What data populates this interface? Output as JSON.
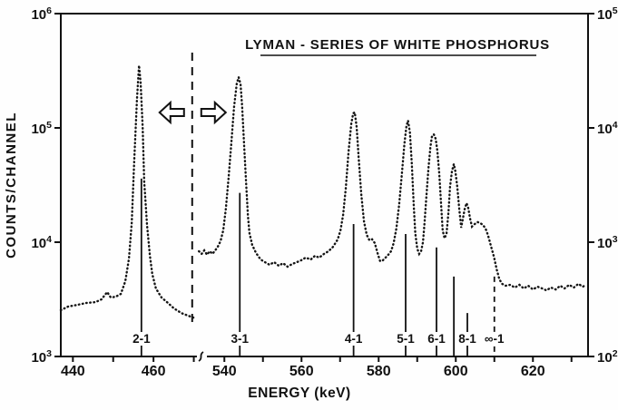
{
  "chart_data": {
    "type": "line",
    "title": "LYMAN - SERIES OF WHITE PHOSPHORUS",
    "xlabel": "ENERGY (keV)",
    "ylabel": "COUNTS/CHANNEL",
    "plot_style": "dotted spectrum trace, logarithmic y, broken x-axis; left part of spectrum reads left axis, right part reads right axis (open arrows at the dashed divider)",
    "x_axis": {
      "left_segment": {
        "range_keV": [
          437,
          471
        ],
        "ticks": [
          440,
          450,
          460,
          470
        ],
        "labeled_ticks": [
          "440",
          "460"
        ]
      },
      "right_segment": {
        "range_keV": [
          535,
          634
        ],
        "ticks": [
          540,
          550,
          560,
          570,
          580,
          590,
          600,
          610,
          620,
          630
        ],
        "labeled_ticks": [
          "540",
          "560",
          "580",
          "600",
          "620"
        ]
      },
      "break_between_keV": [
        471,
        535
      ]
    },
    "y_axis_left": {
      "scale": "log",
      "range": [
        1000,
        1000000
      ],
      "tick_labels": [
        "10^6",
        "10^5",
        "10^4",
        "10^3"
      ]
    },
    "y_axis_right": {
      "scale": "log",
      "range": [
        100,
        100000
      ],
      "tick_labels": [
        "10^5",
        "10^4",
        "10^3",
        "10^2"
      ]
    },
    "scale_indicator": {
      "divider_keV": 469.6,
      "divider_style": "dashed",
      "left_arrow": "read left axis",
      "right_arrow": "read right axis"
    },
    "peak_markers": [
      {
        "label": "2-1",
        "energy_keV": 457.0,
        "marker_top_counts": 36000,
        "axis": "left",
        "line_style": "solid"
      },
      {
        "label": "3-1",
        "energy_keV": 544.0,
        "marker_top_counts": 2700,
        "axis": "right",
        "line_style": "solid"
      },
      {
        "label": "4-1",
        "energy_keV": 573.5,
        "marker_top_counts": 1440,
        "axis": "right",
        "line_style": "solid"
      },
      {
        "label": "5-1",
        "energy_keV": 587.0,
        "marker_top_counts": 1180,
        "axis": "right",
        "line_style": "solid"
      },
      {
        "label": "6-1",
        "energy_keV": 595.0,
        "marker_top_counts": 900,
        "axis": "right",
        "line_style": "solid"
      },
      {
        "label": null,
        "energy_keV": 599.5,
        "marker_top_counts": 500,
        "axis": "right",
        "line_style": "solid"
      },
      {
        "label": "8-1",
        "energy_keV": 603.0,
        "marker_top_counts": 240,
        "axis": "right",
        "line_style": "solid"
      },
      {
        "label": "∞-1",
        "energy_keV": 610.0,
        "marker_top_counts": 500,
        "axis": "right",
        "line_style": "dashed"
      }
    ],
    "series": [
      {
        "name": "spectrum left segment (left axis)",
        "axis": "left",
        "points": [
          [
            437.0,
            2540
          ],
          [
            438.8,
            2730
          ],
          [
            441.1,
            2830
          ],
          [
            443.3,
            2940
          ],
          [
            445.6,
            2990
          ],
          [
            447.1,
            3160
          ],
          [
            448.5,
            3660
          ],
          [
            449.4,
            3280
          ],
          [
            450.7,
            3340
          ],
          [
            451.9,
            3530
          ],
          [
            453.0,
            4560
          ],
          [
            453.9,
            7190
          ],
          [
            454.6,
            14900
          ],
          [
            455.2,
            49000
          ],
          [
            455.9,
            176000
          ],
          [
            456.4,
            353000
          ],
          [
            456.8,
            254000
          ],
          [
            457.3,
            102000
          ],
          [
            457.7,
            34000
          ],
          [
            458.4,
            14200
          ],
          [
            459.1,
            7600
          ],
          [
            459.7,
            5270
          ],
          [
            460.6,
            3940
          ],
          [
            462.0,
            3280
          ],
          [
            463.6,
            2940
          ],
          [
            465.1,
            2630
          ],
          [
            466.9,
            2400
          ],
          [
            468.5,
            2280
          ],
          [
            469.9,
            2190
          ]
        ]
      },
      {
        "name": "spectrum right segment (right axis)",
        "axis": "right",
        "points": [
          [
            533.4,
            833
          ],
          [
            534.1,
            790
          ],
          [
            534.8,
            847
          ],
          [
            535.5,
            777
          ],
          [
            536.2,
            833
          ],
          [
            536.9,
            790
          ],
          [
            537.6,
            847
          ],
          [
            538.3,
            912
          ],
          [
            539.0,
            1020
          ],
          [
            539.7,
            1270
          ],
          [
            540.4,
            1970
          ],
          [
            541.1,
            3670
          ],
          [
            541.8,
            7330
          ],
          [
            542.5,
            15200
          ],
          [
            543.2,
            24400
          ],
          [
            543.7,
            27800
          ],
          [
            544.2,
            24000
          ],
          [
            544.6,
            15500
          ],
          [
            545.1,
            7330
          ],
          [
            545.6,
            3410
          ],
          [
            546.1,
            1700
          ],
          [
            546.5,
            1200
          ],
          [
            547.2,
            947
          ],
          [
            548.2,
            805
          ],
          [
            549.4,
            706
          ],
          [
            550.5,
            669
          ],
          [
            551.7,
            634
          ],
          [
            552.9,
            669
          ],
          [
            554.1,
            622
          ],
          [
            555.2,
            656
          ],
          [
            556.4,
            611
          ],
          [
            557.6,
            645
          ],
          [
            558.8,
            669
          ],
          [
            559.9,
            694
          ],
          [
            561.1,
            733
          ],
          [
            562.4,
            706
          ],
          [
            563.5,
            760
          ],
          [
            564.6,
            733
          ],
          [
            565.8,
            789
          ],
          [
            567.0,
            833
          ],
          [
            568.2,
            912
          ],
          [
            569.4,
            1060
          ],
          [
            570.1,
            1270
          ],
          [
            570.8,
            1730
          ],
          [
            571.5,
            3000
          ],
          [
            572.2,
            6220
          ],
          [
            572.9,
            10900
          ],
          [
            573.4,
            13400
          ],
          [
            573.8,
            13700
          ],
          [
            574.3,
            10200
          ],
          [
            574.8,
            5680
          ],
          [
            575.5,
            2630
          ],
          [
            576.2,
            1520
          ],
          [
            576.9,
            1160
          ],
          [
            577.6,
            1040
          ],
          [
            578.3,
            1060
          ],
          [
            579.0,
            982
          ],
          [
            579.7,
            805
          ],
          [
            580.4,
            681
          ],
          [
            581.1,
            694
          ],
          [
            581.8,
            733
          ],
          [
            582.5,
            777
          ],
          [
            583.2,
            833
          ],
          [
            583.9,
            982
          ],
          [
            584.6,
            1320
          ],
          [
            585.3,
            2120
          ],
          [
            586.0,
            3930
          ],
          [
            586.7,
            7330
          ],
          [
            587.2,
            10400
          ],
          [
            587.6,
            11600
          ],
          [
            588.1,
            9130
          ],
          [
            588.6,
            4830
          ],
          [
            589.1,
            2120
          ],
          [
            589.5,
            1200
          ],
          [
            590.0,
            879
          ],
          [
            590.5,
            790
          ],
          [
            591.0,
            833
          ],
          [
            591.5,
            1000
          ],
          [
            591.9,
            1470
          ],
          [
            592.4,
            2540
          ],
          [
            592.9,
            4400
          ],
          [
            593.4,
            6720
          ],
          [
            593.8,
            8340
          ],
          [
            594.3,
            8800
          ],
          [
            594.8,
            8030
          ],
          [
            595.2,
            6340
          ],
          [
            595.7,
            4020
          ],
          [
            596.2,
            2120
          ],
          [
            596.6,
            1270
          ],
          [
            597.1,
            1080
          ],
          [
            597.6,
            1200
          ],
          [
            598.1,
            1830
          ],
          [
            598.5,
            3050
          ],
          [
            599.0,
            4170
          ],
          [
            599.5,
            4830
          ],
          [
            599.9,
            4170
          ],
          [
            600.4,
            3050
          ],
          [
            600.9,
            1940
          ],
          [
            601.4,
            1340
          ],
          [
            601.8,
            1580
          ],
          [
            602.3,
            1940
          ],
          [
            602.8,
            2200
          ],
          [
            603.2,
            2000
          ],
          [
            603.7,
            1610
          ],
          [
            604.2,
            1370
          ],
          [
            604.9,
            1440
          ],
          [
            605.6,
            1500
          ],
          [
            606.3,
            1470
          ],
          [
            607.0,
            1420
          ],
          [
            607.7,
            1320
          ],
          [
            608.4,
            1140
          ],
          [
            609.1,
            931
          ],
          [
            609.9,
            745
          ],
          [
            610.6,
            579
          ],
          [
            611.3,
            473
          ],
          [
            612.0,
            432
          ],
          [
            612.9,
            416
          ],
          [
            614.1,
            424
          ],
          [
            615.3,
            401
          ],
          [
            616.5,
            424
          ],
          [
            617.6,
            394
          ],
          [
            618.8,
            416
          ],
          [
            620.0,
            386
          ],
          [
            621.2,
            408
          ],
          [
            622.4,
            394
          ],
          [
            623.5,
            379
          ],
          [
            624.7,
            401
          ],
          [
            625.9,
            386
          ],
          [
            627.1,
            416
          ],
          [
            628.2,
            394
          ],
          [
            629.4,
            424
          ],
          [
            630.6,
            401
          ],
          [
            631.8,
            432
          ],
          [
            632.9,
            408
          ],
          [
            633.9,
            424
          ]
        ]
      }
    ]
  }
}
